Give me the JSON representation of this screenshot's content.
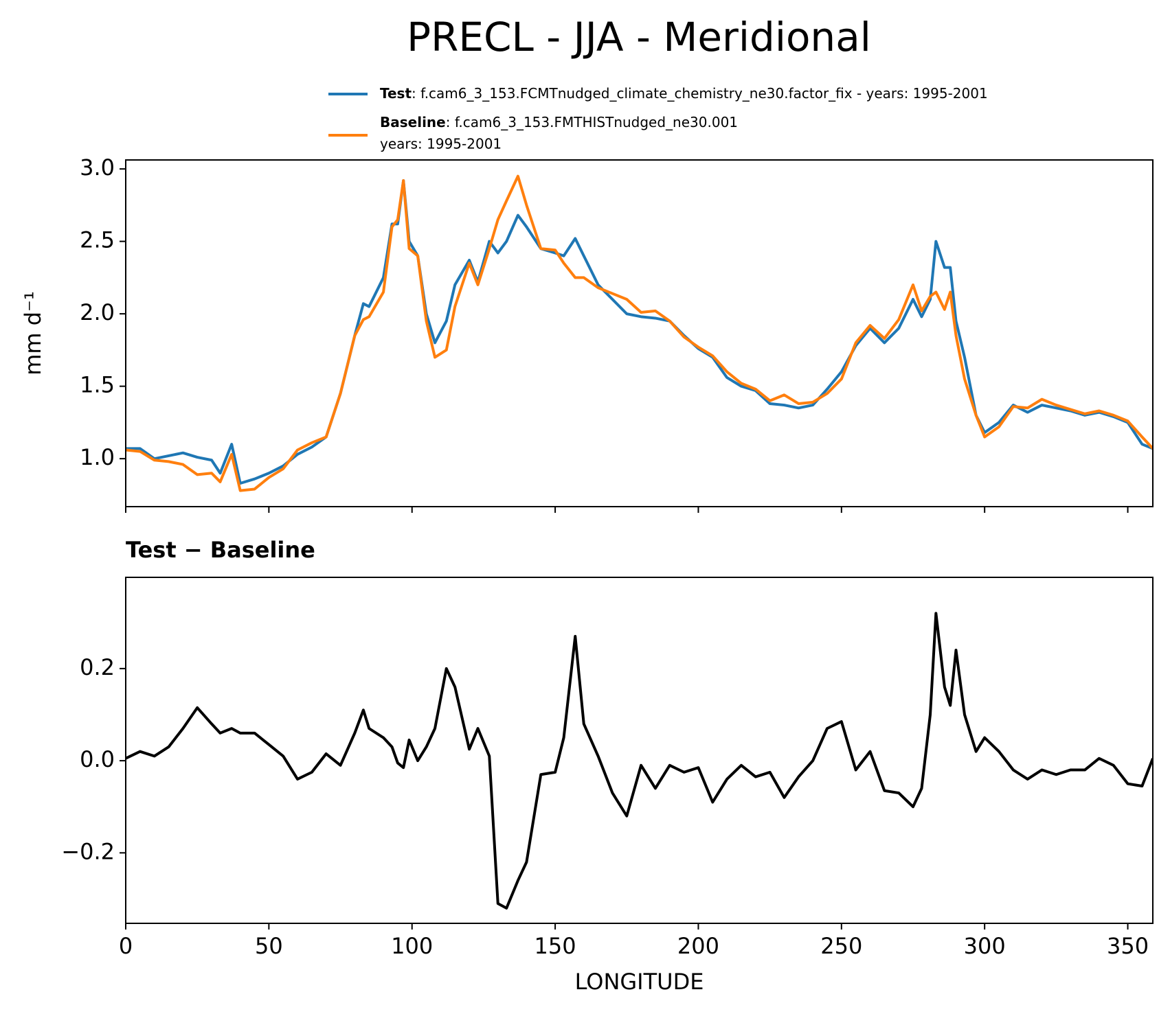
{
  "title": "PRECL - JJA - Meridional",
  "chart_data": [
    {
      "type": "line",
      "ylabel": "mm d⁻¹",
      "x": [
        0,
        5,
        10,
        15,
        20,
        25,
        30,
        33,
        37,
        40,
        45,
        50,
        55,
        60,
        65,
        70,
        75,
        80,
        83,
        85,
        90,
        93,
        95,
        97,
        99,
        102,
        105,
        108,
        112,
        115,
        120,
        123,
        127,
        130,
        133,
        137,
        140,
        145,
        150,
        153,
        157,
        160,
        165,
        170,
        175,
        180,
        185,
        190,
        195,
        200,
        205,
        210,
        215,
        220,
        225,
        230,
        235,
        240,
        245,
        250,
        255,
        260,
        265,
        270,
        275,
        278,
        281,
        283,
        286,
        288,
        290,
        293,
        297,
        300,
        305,
        310,
        315,
        320,
        325,
        330,
        335,
        340,
        345,
        350,
        355,
        358.75
      ],
      "series": [
        {
          "name": "Test",
          "description": ": f.cam6_3_153.FCMTnudged_climate_chemistry_ne30.factor_fix - years: 1995-2001",
          "color": "#1f77b4",
          "values": [
            1.07,
            1.07,
            1.0,
            1.02,
            1.04,
            1.01,
            0.99,
            0.9,
            1.1,
            0.83,
            0.86,
            0.9,
            0.95,
            1.03,
            1.08,
            1.15,
            1.45,
            1.85,
            2.07,
            2.05,
            2.25,
            2.62,
            2.62,
            2.92,
            2.5,
            2.4,
            2.0,
            1.8,
            1.95,
            2.2,
            2.37,
            2.22,
            2.5,
            2.42,
            2.5,
            2.68,
            2.6,
            2.45,
            2.42,
            2.4,
            2.52,
            2.4,
            2.2,
            2.1,
            2.0,
            1.98,
            1.97,
            1.95,
            1.85,
            1.76,
            1.7,
            1.56,
            1.5,
            1.47,
            1.38,
            1.37,
            1.35,
            1.37,
            1.48,
            1.6,
            1.78,
            1.9,
            1.8,
            1.9,
            2.1,
            1.98,
            2.1,
            2.5,
            2.32,
            2.32,
            1.95,
            1.7,
            1.3,
            1.18,
            1.25,
            1.37,
            1.32,
            1.37,
            1.35,
            1.33,
            1.3,
            1.32,
            1.29,
            1.25,
            1.1,
            1.07
          ]
        },
        {
          "name": "Baseline",
          "description": [
            ": f.cam6_3_153.FMTHISTnudged_ne30.001",
            "years: 1995-2001"
          ],
          "color": "#ff7f0e",
          "values": [
            1.06,
            1.05,
            0.99,
            0.98,
            0.96,
            0.89,
            0.9,
            0.84,
            1.03,
            0.78,
            0.79,
            0.87,
            0.93,
            1.06,
            1.11,
            1.15,
            1.45,
            1.85,
            1.96,
            1.98,
            2.15,
            2.6,
            2.65,
            2.92,
            2.45,
            2.4,
            1.95,
            1.7,
            1.75,
            2.05,
            2.35,
            2.2,
            2.45,
            2.65,
            2.78,
            2.95,
            2.75,
            2.45,
            2.44,
            2.35,
            2.25,
            2.25,
            2.18,
            2.14,
            2.1,
            2.01,
            2.02,
            1.95,
            1.84,
            1.77,
            1.71,
            1.6,
            1.52,
            1.48,
            1.4,
            1.44,
            1.38,
            1.39,
            1.45,
            1.55,
            1.8,
            1.92,
            1.83,
            1.96,
            2.2,
            2.02,
            2.12,
            2.15,
            2.03,
            2.15,
            1.85,
            1.55,
            1.3,
            1.15,
            1.22,
            1.36,
            1.35,
            1.41,
            1.37,
            1.34,
            1.31,
            1.33,
            1.3,
            1.26,
            1.15,
            1.07
          ]
        }
      ],
      "xlim": [
        0,
        358.75
      ],
      "xticks": [
        0,
        50,
        100,
        150,
        200,
        250,
        300,
        350
      ],
      "ylim": [
        0.669,
        3.062
      ],
      "yticks": [
        {
          "value": 1,
          "label": "1.0"
        },
        1.5,
        {
          "value": 2,
          "label": "2.0"
        },
        2.5,
        {
          "value": 3,
          "label": "3.0"
        }
      ]
    },
    {
      "type": "line",
      "title": "Test − Baseline",
      "xlabel": "LONGITUDE",
      "x": [
        0,
        5,
        10,
        15,
        20,
        25,
        30,
        33,
        37,
        40,
        45,
        50,
        55,
        60,
        65,
        70,
        75,
        80,
        83,
        85,
        90,
        93,
        95,
        97,
        99,
        102,
        105,
        108,
        112,
        115,
        120,
        123,
        127,
        130,
        133,
        137,
        140,
        145,
        150,
        153,
        157,
        160,
        165,
        170,
        175,
        180,
        185,
        190,
        195,
        200,
        205,
        210,
        215,
        220,
        225,
        230,
        235,
        240,
        245,
        250,
        255,
        260,
        265,
        270,
        275,
        278,
        281,
        283,
        286,
        288,
        290,
        293,
        297,
        300,
        305,
        310,
        315,
        320,
        325,
        330,
        335,
        340,
        345,
        350,
        355,
        358.75
      ],
      "series": [
        {
          "color": "#000000",
          "values": [
            0.005,
            0.02,
            0.01,
            0.03,
            0.07,
            0.115,
            0.08,
            0.06,
            0.07,
            0.06,
            0.06,
            0.035,
            0.01,
            -0.04,
            -0.025,
            0.015,
            -0.01,
            0.06,
            0.11,
            0.07,
            0.05,
            0.03,
            -0.005,
            -0.015,
            0.045,
            0.0,
            0.03,
            0.07,
            0.2,
            0.16,
            0.025,
            0.07,
            0.01,
            -0.31,
            -0.32,
            -0.26,
            -0.22,
            -0.03,
            -0.025,
            0.05,
            0.27,
            0.08,
            0.01,
            -0.07,
            -0.12,
            -0.01,
            -0.06,
            -0.01,
            -0.025,
            -0.015,
            -0.09,
            -0.04,
            -0.01,
            -0.035,
            -0.025,
            -0.08,
            -0.035,
            0.0,
            0.07,
            0.085,
            -0.02,
            0.02,
            -0.065,
            -0.07,
            -0.1,
            -0.06,
            0.1,
            0.32,
            0.16,
            0.12,
            0.24,
            0.1,
            0.02,
            0.05,
            0.02,
            -0.02,
            -0.04,
            -0.02,
            -0.03,
            -0.02,
            -0.02,
            0.005,
            -0.01,
            -0.05,
            -0.055,
            0.005
          ]
        }
      ],
      "xlim": [
        0,
        358.75
      ],
      "xticks": [
        0,
        50,
        100,
        150,
        200,
        250,
        300,
        350
      ],
      "ylim": [
        -0.353,
        0.398
      ],
      "yticks": [
        {
          "value": -0.2,
          "label": "−0.2"
        },
        {
          "value": 0,
          "label": "0.0"
        },
        0.2
      ]
    }
  ]
}
